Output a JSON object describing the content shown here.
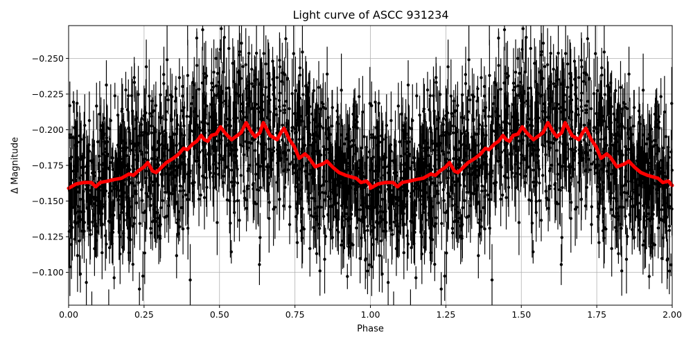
{
  "chart_data": {
    "type": "scatter",
    "title": "Light curve of ASCC 931234",
    "xlabel": "Phase",
    "ylabel": "Δ Magnitude",
    "xlim": [
      0.0,
      2.0
    ],
    "ylim": [
      -0.077,
      -0.273
    ],
    "y_inverted": true,
    "grid": true,
    "legend": null,
    "x_ticks": [
      "0.00",
      "0.25",
      "0.50",
      "0.75",
      "1.00",
      "1.25",
      "1.50",
      "1.75",
      "2.00"
    ],
    "y_ticks": [
      "−0.250",
      "−0.225",
      "−0.200",
      "−0.175",
      "−0.150",
      "−0.125",
      "−0.100"
    ],
    "y_tick_values": [
      -0.25,
      -0.225,
      -0.2,
      -0.175,
      -0.15,
      -0.125,
      -0.1
    ],
    "series": [
      {
        "name": "observations",
        "style": "black points with error bars",
        "color": "#000000",
        "description": "Dense phase-folded photometry, magnitudes spread roughly -0.27 to -0.08, plotted twice over phase 0-2"
      },
      {
        "name": "binned model",
        "style": "thick red line",
        "color": "#ff0000",
        "x": [
          0.0,
          0.025,
          0.05,
          0.075,
          0.09,
          0.105,
          0.13,
          0.15,
          0.175,
          0.2,
          0.215,
          0.23,
          0.25,
          0.262,
          0.278,
          0.29,
          0.305,
          0.324,
          0.347,
          0.365,
          0.381,
          0.393,
          0.411,
          0.425,
          0.439,
          0.45,
          0.461,
          0.473,
          0.489,
          0.503,
          0.517,
          0.54,
          0.572,
          0.588,
          0.604,
          0.618,
          0.634,
          0.645,
          0.668,
          0.691,
          0.703,
          0.714,
          0.732,
          0.748,
          0.764,
          0.783,
          0.794,
          0.817,
          0.829,
          0.842,
          0.856,
          0.874,
          0.896,
          0.919,
          0.935,
          0.953,
          0.969,
          0.987,
          1.0
        ],
        "y": [
          -0.159,
          -0.162,
          -0.163,
          -0.163,
          -0.16,
          -0.163,
          -0.164,
          -0.165,
          -0.166,
          -0.169,
          -0.168,
          -0.171,
          -0.174,
          -0.177,
          -0.171,
          -0.17,
          -0.173,
          -0.177,
          -0.18,
          -0.183,
          -0.187,
          -0.186,
          -0.19,
          -0.192,
          -0.196,
          -0.193,
          -0.192,
          -0.196,
          -0.197,
          -0.202,
          -0.198,
          -0.193,
          -0.198,
          -0.205,
          -0.199,
          -0.195,
          -0.198,
          -0.205,
          -0.196,
          -0.193,
          -0.198,
          -0.201,
          -0.193,
          -0.188,
          -0.18,
          -0.183,
          -0.181,
          -0.174,
          -0.175,
          -0.176,
          -0.178,
          -0.174,
          -0.17,
          -0.168,
          -0.167,
          -0.166,
          -0.163,
          -0.164,
          -0.161
        ]
      }
    ],
    "notes": "Red curve repeats with period 1.0 across phase 1.0-2.0"
  },
  "header": {
    "title": "Light curve of ASCC 931234"
  },
  "axes": {
    "x_label": "Phase",
    "y_label": "Δ Magnitude"
  }
}
